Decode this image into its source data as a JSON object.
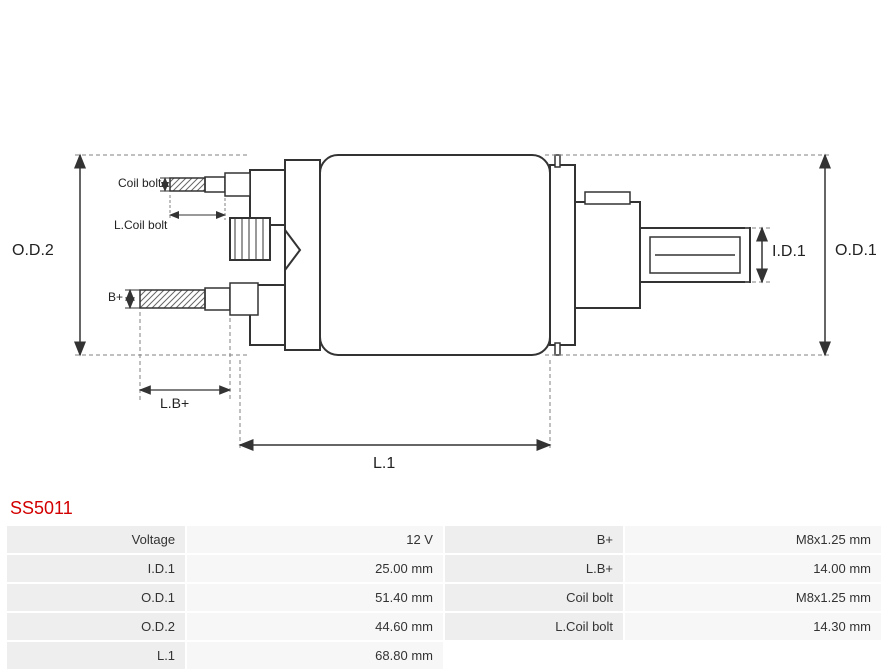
{
  "product_code": "SS5011",
  "diagram": {
    "labels": {
      "od2": "O.D.2",
      "od1": "O.D.1",
      "id1": "I.D.1",
      "l1": "L.1",
      "lb_plus": "L.B+",
      "b_plus": "B+",
      "coil_bolt": "Coil bolt",
      "l_coil_bolt": "L.Coil bolt"
    },
    "colors": {
      "stroke": "#333333",
      "thin": "#555555",
      "dash": "#808080",
      "fill": "#ffffff",
      "hatch": "#666666"
    },
    "line_width_main": 2,
    "line_width_thin": 1
  },
  "specs": {
    "rows": [
      {
        "l_label": "Voltage",
        "l_value": "12 V",
        "r_label": "B+",
        "r_value": "M8x1.25 mm"
      },
      {
        "l_label": "I.D.1",
        "l_value": "25.00 mm",
        "r_label": "L.B+",
        "r_value": "14.00 mm"
      },
      {
        "l_label": "O.D.1",
        "l_value": "51.40 mm",
        "r_label": "Coil bolt",
        "r_value": "M8x1.25 mm"
      },
      {
        "l_label": "O.D.2",
        "l_value": "44.60 mm",
        "r_label": "L.Coil bolt",
        "r_value": "14.30 mm"
      },
      {
        "l_label": "L.1",
        "l_value": "68.80 mm",
        "r_label": "",
        "r_value": ""
      }
    ]
  },
  "table_colors": {
    "label_bg": "#eeeeee",
    "value_bg": "#f7f7f7",
    "text": "#333333"
  }
}
